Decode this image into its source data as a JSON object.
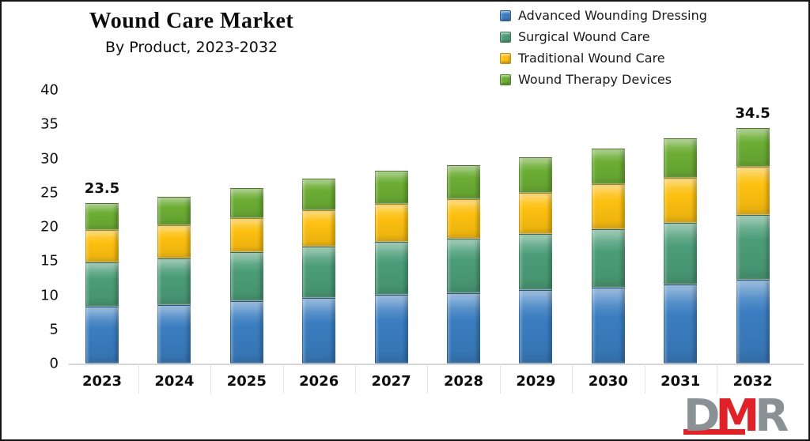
{
  "header": {
    "title": "Wound Care Market",
    "subtitle": "By Product, 2023-2032"
  },
  "logo": {
    "d": "D",
    "m": "M",
    "r": "R"
  },
  "chart_data": {
    "type": "bar",
    "stacked": true,
    "title": "Wound Care Market",
    "subtitle": "By Product, 2023-2032",
    "xlabel": "",
    "ylabel": "",
    "ylim": [
      0,
      40
    ],
    "yticks": [
      "0",
      "5",
      "10",
      "15",
      "20",
      "25",
      "30",
      "35",
      "40"
    ],
    "grid": false,
    "legend_position": "top-right",
    "categories": [
      "2023",
      "2024",
      "2025",
      "2026",
      "2027",
      "2028",
      "2029",
      "2030",
      "2031",
      "2032"
    ],
    "series": [
      {
        "name": "Advanced Wounding Dressing",
        "color": "#3a7dc0",
        "values": [
          8.3,
          8.6,
          9.1,
          9.6,
          10.0,
          10.3,
          10.7,
          11.1,
          11.6,
          12.2
        ]
      },
      {
        "name": "Surgical Wound Care",
        "color": "#4b9d77",
        "values": [
          6.5,
          6.8,
          7.2,
          7.5,
          7.8,
          8.0,
          8.3,
          8.6,
          9.0,
          9.5
        ]
      },
      {
        "name": "Traditional Wound Care",
        "color": "#fdc010",
        "values": [
          4.7,
          4.8,
          5.0,
          5.3,
          5.5,
          5.8,
          6.0,
          6.5,
          6.6,
          7.1
        ]
      },
      {
        "name": "Wound Therapy Devices",
        "color": "#6cad34",
        "values": [
          4.0,
          4.2,
          4.4,
          4.7,
          4.9,
          4.9,
          5.2,
          5.2,
          5.7,
          5.7
        ]
      }
    ],
    "totals": [
      23.5,
      24.4,
      25.7,
      27.1,
      28.2,
      29.0,
      30.2,
      31.4,
      32.9,
      34.5
    ],
    "bar_value_labels": {
      "0": "23.5",
      "9": "34.5"
    }
  }
}
